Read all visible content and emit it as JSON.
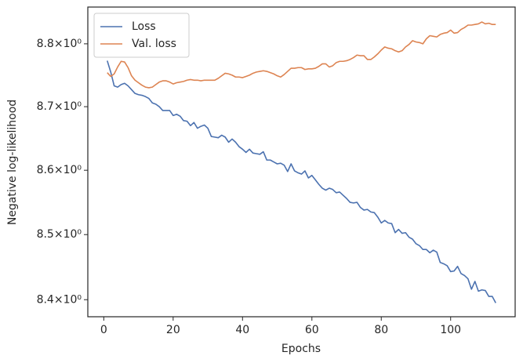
{
  "chart_data": {
    "type": "line",
    "xlabel": "Epochs",
    "ylabel": "Negative log-likelihood",
    "x": [
      1,
      2,
      3,
      4,
      5,
      6,
      7,
      8,
      9,
      10,
      11,
      12,
      13,
      14,
      15,
      16,
      17,
      18,
      19,
      20,
      21,
      22,
      23,
      24,
      25,
      26,
      27,
      28,
      29,
      30,
      31,
      32,
      33,
      34,
      35,
      36,
      37,
      38,
      39,
      40,
      41,
      42,
      43,
      44,
      45,
      46,
      47,
      48,
      49,
      50,
      51,
      52,
      53,
      54,
      55,
      56,
      57,
      58,
      59,
      60,
      61,
      62,
      63,
      64,
      65,
      66,
      67,
      68,
      69,
      70,
      71,
      72,
      73,
      74,
      75,
      76,
      77,
      78,
      79,
      80,
      81,
      82,
      83,
      84,
      85,
      86,
      87,
      88,
      89,
      90,
      91,
      92,
      93,
      94,
      95,
      96,
      97,
      98,
      99,
      100,
      101,
      102,
      103,
      104,
      105,
      106,
      107,
      108,
      109,
      110,
      111,
      112,
      113
    ],
    "series": [
      {
        "name": "Loss",
        "color": "#4c72b0",
        "values": [
          8.773,
          8.755,
          8.733,
          8.731,
          8.735,
          8.737,
          8.733,
          8.727,
          8.721,
          8.719,
          8.718,
          8.716,
          8.713,
          8.706,
          8.704,
          8.7,
          8.694,
          8.694,
          8.694,
          8.686,
          8.688,
          8.685,
          8.678,
          8.677,
          8.67,
          8.675,
          8.666,
          8.669,
          8.671,
          8.666,
          8.653,
          8.652,
          8.651,
          8.655,
          8.652,
          8.644,
          8.649,
          8.644,
          8.637,
          8.633,
          8.628,
          8.633,
          8.627,
          8.626,
          8.625,
          8.629,
          8.616,
          8.616,
          8.613,
          8.61,
          8.611,
          8.608,
          8.598,
          8.61,
          8.599,
          8.596,
          8.594,
          8.599,
          8.588,
          8.592,
          8.585,
          8.578,
          8.572,
          8.569,
          8.572,
          8.57,
          8.565,
          8.566,
          8.561,
          8.556,
          8.55,
          8.549,
          8.55,
          8.542,
          8.538,
          8.539,
          8.535,
          8.534,
          8.527,
          8.518,
          8.522,
          8.518,
          8.517,
          8.503,
          8.508,
          8.502,
          8.503,
          8.496,
          8.493,
          8.486,
          8.483,
          8.477,
          8.477,
          8.472,
          8.476,
          8.473,
          8.457,
          8.455,
          8.452,
          8.443,
          8.444,
          8.451,
          8.44,
          8.437,
          8.432,
          8.416,
          8.428,
          8.413,
          8.415,
          8.414,
          8.405,
          8.405,
          8.395
        ]
      },
      {
        "name": "Val. loss",
        "color": "#dd8452",
        "values": [
          8.754,
          8.748,
          8.752,
          8.763,
          8.772,
          8.771,
          8.762,
          8.749,
          8.742,
          8.738,
          8.734,
          8.731,
          8.73,
          8.731,
          8.735,
          8.739,
          8.741,
          8.741,
          8.739,
          8.736,
          8.738,
          8.739,
          8.74,
          8.742,
          8.743,
          8.742,
          8.742,
          8.741,
          8.742,
          8.742,
          8.742,
          8.742,
          8.745,
          8.749,
          8.753,
          8.752,
          8.75,
          8.747,
          8.747,
          8.746,
          8.748,
          8.75,
          8.753,
          8.755,
          8.756,
          8.757,
          8.756,
          8.754,
          8.752,
          8.749,
          8.747,
          8.751,
          8.756,
          8.761,
          8.761,
          8.762,
          8.762,
          8.759,
          8.76,
          8.76,
          8.761,
          8.764,
          8.768,
          8.768,
          8.763,
          8.765,
          8.77,
          8.772,
          8.772,
          8.773,
          8.775,
          8.778,
          8.782,
          8.781,
          8.781,
          8.775,
          8.775,
          8.779,
          8.784,
          8.79,
          8.795,
          8.793,
          8.792,
          8.789,
          8.787,
          8.789,
          8.795,
          8.799,
          8.805,
          8.803,
          8.802,
          8.8,
          8.808,
          8.813,
          8.812,
          8.811,
          8.815,
          8.817,
          8.818,
          8.822,
          8.817,
          8.818,
          8.823,
          8.826,
          8.83,
          8.83,
          8.831,
          8.832,
          8.835,
          8.832,
          8.833,
          8.831,
          8.831
        ]
      }
    ],
    "xlim": [
      -4.6,
      118.6
    ],
    "xticks": [
      0,
      20,
      40,
      60,
      80,
      100
    ],
    "ylim": [
      8.374,
      8.859
    ],
    "yscale": "log",
    "yticks": [
      {
        "value": 8.4,
        "label": "8.4×10⁰"
      },
      {
        "value": 8.5,
        "label": "8.5×10⁰"
      },
      {
        "value": 8.6,
        "label": "8.6×10⁰"
      },
      {
        "value": 8.7,
        "label": "8.7×10⁰"
      },
      {
        "value": 8.8,
        "label": "8.8×10⁰"
      }
    ],
    "grid": false,
    "legend": "upper left"
  }
}
